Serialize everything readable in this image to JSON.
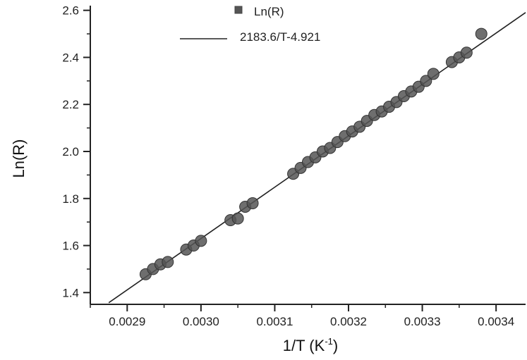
{
  "chart_data": {
    "type": "scatter",
    "xlabel": "1/T (K",
    "xlabel_sup": "-1",
    "xlabel_close": ")",
    "ylabel": "Ln(R)",
    "xlim": [
      0.00285,
      0.00344
    ],
    "ylim": [
      1.35,
      2.62
    ],
    "xticks": [
      {
        "value": 0.0029,
        "label": "0.0029"
      },
      {
        "value": 0.003,
        "label": "0.0030"
      },
      {
        "value": 0.0031,
        "label": "0.0031"
      },
      {
        "value": 0.0032,
        "label": "0.0032"
      },
      {
        "value": 0.0033,
        "label": "0.0033"
      },
      {
        "value": 0.0034,
        "label": "0.0034"
      }
    ],
    "yticks": [
      {
        "value": 1.4,
        "label": "1.4"
      },
      {
        "value": 1.6,
        "label": "1.6"
      },
      {
        "value": 1.8,
        "label": "1.8"
      },
      {
        "value": 2.0,
        "label": "2.0"
      },
      {
        "value": 2.2,
        "label": "2.2"
      },
      {
        "value": 2.4,
        "label": "2.4"
      },
      {
        "value": 2.6,
        "label": "2.6"
      }
    ],
    "legend_position": "top-left",
    "series": [
      {
        "name": "Ln(R)",
        "kind": "scatter",
        "color": "#555555",
        "points": [
          [
            0.002925,
            1.478
          ],
          [
            0.002935,
            1.5
          ],
          [
            0.002945,
            1.52
          ],
          [
            0.002955,
            1.53
          ],
          [
            0.00298,
            1.583
          ],
          [
            0.00299,
            1.6
          ],
          [
            0.003,
            1.62
          ],
          [
            0.00304,
            1.708
          ],
          [
            0.00305,
            1.715
          ],
          [
            0.00306,
            1.765
          ],
          [
            0.00307,
            1.78
          ],
          [
            0.003125,
            1.905
          ],
          [
            0.003135,
            1.93
          ],
          [
            0.003145,
            1.955
          ],
          [
            0.003155,
            1.975
          ],
          [
            0.003165,
            2.0
          ],
          [
            0.003175,
            2.015
          ],
          [
            0.003185,
            2.04
          ],
          [
            0.003195,
            2.065
          ],
          [
            0.003205,
            2.085
          ],
          [
            0.003215,
            2.105
          ],
          [
            0.003225,
            2.13
          ],
          [
            0.003235,
            2.155
          ],
          [
            0.003245,
            2.17
          ],
          [
            0.003255,
            2.19
          ],
          [
            0.003265,
            2.21
          ],
          [
            0.003275,
            2.235
          ],
          [
            0.003285,
            2.255
          ],
          [
            0.003295,
            2.275
          ],
          [
            0.003305,
            2.3
          ],
          [
            0.003315,
            2.33
          ],
          [
            0.00334,
            2.38
          ],
          [
            0.00335,
            2.4
          ],
          [
            0.00336,
            2.42
          ],
          [
            0.00338,
            2.5
          ]
        ]
      },
      {
        "name": "2183.6/T-4.921",
        "kind": "line",
        "color": "#222222",
        "slope": 2183.6,
        "intercept": -4.921,
        "x_range": [
          0.002875,
          0.00344
        ]
      }
    ]
  }
}
